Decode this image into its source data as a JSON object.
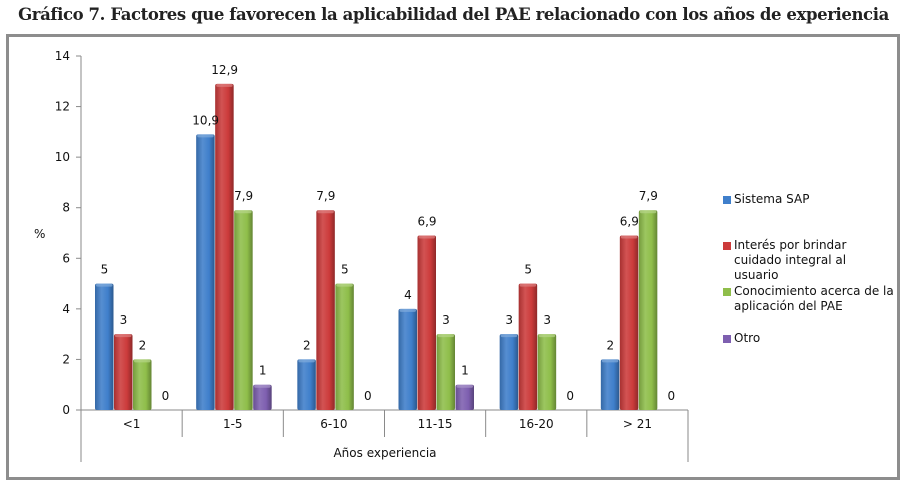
{
  "chart_data": {
    "type": "bar",
    "title": "Gráfico 7. Factores que favorecen la aplicabilidad del PAE relacionado con los años de experiencia",
    "xlabel": "Años experiencia",
    "ylabel": "%",
    "ylim": [
      0,
      14
    ],
    "yticks": [
      0,
      2,
      4,
      6,
      8,
      10,
      12,
      14
    ],
    "grid": false,
    "legend_position": "right",
    "categories": [
      "<1",
      "1-5",
      "6-10",
      "11-15",
      "16-20",
      "> 21"
    ],
    "series": [
      {
        "name": "Sistema SAP",
        "color": "#3f7fcb",
        "values": [
          5,
          10.9,
          2,
          4,
          3,
          2
        ],
        "labels": [
          "5",
          "10,9",
          "2",
          "4",
          "3",
          "2"
        ]
      },
      {
        "name": "Interés por brindar cuidado integral al usuario",
        "color": "#cc3b3b",
        "values": [
          3,
          12.9,
          7.9,
          6.9,
          5,
          6.9
        ],
        "labels": [
          "3",
          "12,9",
          "7,9",
          "6,9",
          "5",
          "6,9"
        ]
      },
      {
        "name": "Conocimiento acerca de la aplicación del PAE",
        "color": "#8fbe4a",
        "values": [
          2,
          7.9,
          5,
          3,
          3,
          7.9
        ],
        "labels": [
          "2",
          "7,9",
          "5",
          "3",
          "3",
          "7,9"
        ]
      },
      {
        "name": "Otro",
        "color": "#7e5fb0",
        "values": [
          0,
          1,
          0,
          1,
          0,
          0
        ],
        "labels": [
          "0",
          "1",
          "0",
          "1",
          "0",
          "0"
        ]
      }
    ]
  },
  "legend": {
    "items": [
      {
        "label": "Sistema SAP",
        "color": "#3f7fcb"
      },
      {
        "label": "Interés por brindar cuidado integral al usuario",
        "color": "#cc3b3b"
      },
      {
        "label": "Conocimiento acerca de la aplicación del PAE",
        "color": "#8fbe4a"
      },
      {
        "label": "Otro",
        "color": "#7e5fb0"
      }
    ]
  }
}
